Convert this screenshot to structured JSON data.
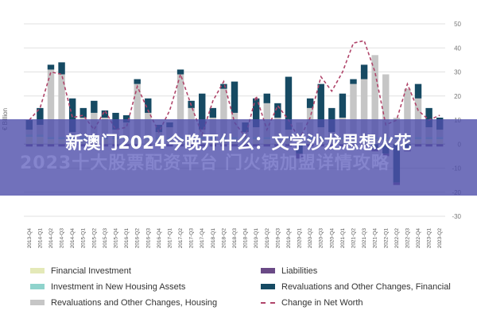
{
  "overlay": {
    "title": "新澳门2024今晚开什么：文学沙龙思想火花",
    "ghost": "2023十大股票配资平台  门火锅加盟详情攻略"
  },
  "colors": {
    "financial_investment": "#e4e9b8",
    "investment_new_housing": "#8fd3cc",
    "revaluations_housing": "#c6c6c6",
    "liabilities": "#6a4a86",
    "revaluations_financial": "#164a63",
    "net_worth": "#b0456a",
    "banner": "#4e4eaa"
  },
  "chart_data": {
    "type": "bar",
    "ylabel": "€ Billion",
    "ylim": [
      -30,
      50
    ],
    "yticks": [
      50,
      40,
      30,
      20,
      10,
      0,
      -10,
      -20,
      -30
    ],
    "categories": [
      "2013-Q4",
      "2014-Q1",
      "2014-Q2",
      "2014-Q3",
      "2014-Q4",
      "2015-Q1",
      "2015-Q2",
      "2015-Q3",
      "2015-Q4",
      "2016-Q1",
      "2016-Q2",
      "2016-Q3",
      "2016-Q4",
      "2017-Q1",
      "2017-Q2",
      "2017-Q3",
      "2017-Q4",
      "2018-Q1",
      "2018-Q2",
      "2018-Q3",
      "2018-Q4",
      "2019-Q1",
      "2019-Q2",
      "2019-Q3",
      "2019-Q4",
      "2020-Q1",
      "2020-Q2",
      "2020-Q3",
      "2020-Q4",
      "2021-Q1",
      "2021-Q2",
      "2021-Q3",
      "2021-Q4",
      "2022-Q1",
      "2022-Q2",
      "2022-Q3",
      "2022-Q4",
      "2023-Q1",
      "2023-Q2"
    ],
    "series": [
      {
        "name": "Revaluations and Other Changes, Housing",
        "values": [
          2,
          4,
          28,
          26,
          2,
          8,
          10,
          8,
          3,
          6,
          22,
          10,
          2,
          4,
          26,
          12,
          3,
          8,
          20,
          10,
          2,
          4,
          14,
          8,
          3,
          6,
          12,
          4,
          2,
          8,
          22,
          24,
          34,
          26,
          8,
          20,
          16,
          4,
          3
        ]
      },
      {
        "name": "Revaluations and Other Changes, Financial",
        "values": [
          4,
          7,
          2,
          5,
          14,
          4,
          5,
          3,
          7,
          3,
          2,
          6,
          3,
          2,
          2,
          3,
          15,
          4,
          2,
          13,
          4,
          12,
          4,
          6,
          22,
          -4,
          4,
          18,
          10,
          10,
          2,
          6,
          -2,
          -4,
          -16,
          -2,
          6,
          8,
          5
        ]
      },
      {
        "name": "Financial Investment",
        "values": [
          3,
          3,
          2,
          2,
          2,
          2,
          2,
          2,
          2,
          2,
          2,
          2,
          2,
          2,
          2,
          2,
          2,
          2,
          2,
          2,
          2,
          2,
          2,
          2,
          2,
          2,
          2,
          2,
          2,
          2,
          2,
          2,
          2,
          2,
          2,
          2,
          2,
          2,
          2
        ]
      },
      {
        "name": "Investment in New Housing Assets",
        "values": [
          1,
          1,
          1,
          1,
          1,
          1,
          1,
          1,
          1,
          1,
          1,
          1,
          1,
          1,
          1,
          1,
          1,
          1,
          1,
          1,
          1,
          1,
          1,
          1,
          1,
          1,
          1,
          1,
          1,
          1,
          1,
          1,
          1,
          1,
          1,
          1,
          1,
          1,
          1
        ]
      },
      {
        "name": "Liabilities",
        "values": [
          -1,
          -1,
          -1,
          -1,
          -1,
          -1,
          -1,
          -1,
          -1,
          -1,
          -1,
          -1,
          -1,
          -1,
          -1,
          -1,
          -1,
          -1,
          -1,
          -1,
          -1,
          -1,
          -1,
          -1,
          -1,
          -2,
          -1,
          -1,
          -1,
          -1,
          -1,
          -1,
          -1,
          -1,
          -1,
          -1,
          -1,
          -1,
          -1
        ]
      },
      {
        "name": "Change in Net Worth",
        "values": [
          10,
          15,
          30,
          29,
          11,
          12,
          6,
          14,
          6,
          7,
          24,
          14,
          5,
          14,
          29,
          16,
          4,
          18,
          26,
          9,
          3,
          20,
          6,
          16,
          10,
          2,
          11,
          28,
          22,
          30,
          42,
          43,
          30,
          8,
          10,
          25,
          14,
          10,
          12
        ]
      }
    ],
    "legend": [
      "Financial Investment",
      "Liabilities",
      "Investment in New Housing Assets",
      "Revaluations and Other Changes, Financial",
      "Revaluations and Other Changes, Housing",
      "Change in Net Worth"
    ],
    "legend_placement": "bottom",
    "grid": true
  }
}
